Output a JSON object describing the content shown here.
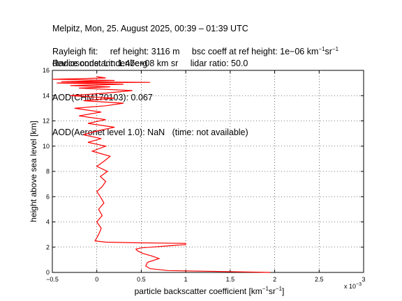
{
  "header": {
    "line1": "Melpitz, Mon, 25. August 2025, 00:39 – 01:39 UTC",
    "line2": "Radiosonde: Lindenberg",
    "line3": "AOD(CHM170103): 0.067",
    "line4": "AOD(Aeronet level 1.0): NaN   (time: not available)"
  },
  "rayleigh": {
    "label": "Rayleigh fit:",
    "ref_height": "ref height: 3116 m",
    "bsc_prefix": "bsc coeff at ref height: 1e−06 km",
    "bsc_exp1": "−1",
    "bsc_mid": "sr",
    "bsc_exp2": "−1"
  },
  "device": {
    "constant": "device constant: 1.47e+08 km sr",
    "lidar_ratio": "lidar ratio: 50.0"
  },
  "chart_data": {
    "type": "line",
    "xlabel_prefix": "particle backscatter coefficient [km",
    "xlabel_exp1": "−1",
    "xlabel_mid": "sr",
    "xlabel_exp2": "−1",
    "xlabel_suffix": "]",
    "ylabel": "height above sea level [km]",
    "x_multiplier": "x 10",
    "x_multiplier_exp": "−3",
    "xlim": [
      -0.5,
      3
    ],
    "ylim": [
      0,
      16
    ],
    "x_ticks": [
      "−0.5",
      "0",
      "0.5",
      "1",
      "1.5",
      "2",
      "2.5",
      "3"
    ],
    "x_tick_values": [
      -0.5,
      0,
      0.5,
      1,
      1.5,
      2,
      2.5,
      3
    ],
    "y_ticks": [
      "0",
      "2",
      "4",
      "6",
      "8",
      "10",
      "12",
      "14",
      "16"
    ],
    "y_tick_values": [
      0,
      2,
      4,
      6,
      8,
      10,
      12,
      14,
      16
    ],
    "grid": true,
    "line_color": "#ff0000",
    "series": [
      {
        "x": [
          1.95,
          0.8,
          0.6,
          0.55,
          0.57,
          0.7,
          0.62,
          0.52,
          0.46,
          0.44,
          0.5,
          0.6,
          0.8,
          1.0,
          1.0,
          0.4,
          0.1,
          -0.02,
          0.02,
          0.05,
          0.0,
          0.06,
          0.02,
          0.08,
          0.04,
          0.0,
          0.06,
          0.1,
          0.04,
          0.12,
          0.0,
          0.08,
          0.15,
          -0.05,
          0.1,
          -0.1,
          0.05,
          -0.15,
          0.0,
          0.2,
          -0.1,
          0.1,
          -0.2,
          0.05,
          -0.25,
          0.1,
          0.3,
          -0.15,
          0.2,
          -0.3,
          0.1,
          0.4,
          -0.2,
          0.15,
          -0.3,
          0.3,
          -0.45,
          0.6,
          -0.4,
          0.2,
          -0.5,
          0.1,
          0.0
        ],
        "y": [
          0.0,
          0.15,
          0.3,
          0.5,
          0.8,
          1.1,
          1.3,
          1.5,
          1.7,
          1.85,
          1.95,
          2.0,
          2.1,
          2.2,
          2.3,
          2.35,
          2.4,
          2.5,
          3.0,
          3.5,
          4.0,
          4.5,
          5.0,
          5.5,
          6.0,
          6.4,
          6.8,
          7.2,
          7.6,
          8.0,
          8.4,
          8.8,
          9.2,
          9.6,
          10.0,
          10.3,
          10.6,
          10.9,
          11.2,
          11.5,
          11.8,
          12.1,
          12.4,
          12.7,
          13.0,
          13.2,
          13.4,
          13.6,
          13.8,
          14.0,
          14.2,
          14.4,
          14.6,
          14.7,
          14.8,
          14.9,
          15.0,
          15.05,
          15.1,
          15.2,
          15.3,
          15.4,
          15.5
        ]
      }
    ]
  }
}
